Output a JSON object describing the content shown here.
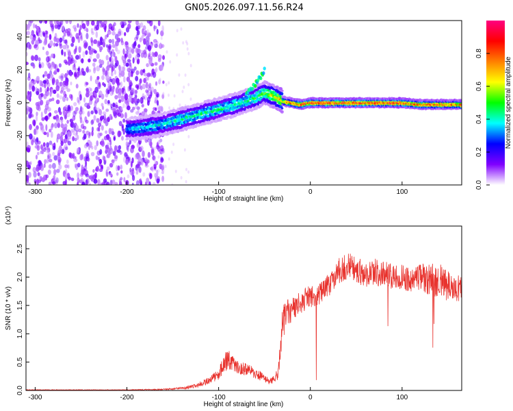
{
  "title": "GN05.2026.097.11.56.R24",
  "chart_data": [
    {
      "type": "heatmap",
      "xlabel": "Height of straight line (km)",
      "ylabel": "Frequency (Hz)",
      "xlim": [
        -310,
        165
      ],
      "ylim": [
        -50,
        50
      ],
      "xticks": [
        -300,
        -200,
        -100,
        0,
        100
      ],
      "yticks": [
        -40,
        -20,
        0,
        20,
        40
      ],
      "colorbar": {
        "label": "Normalized spectral amplitude",
        "range": [
          0,
          1
        ],
        "ticks": [
          "0.0",
          "0.2",
          "0.4",
          "0.6",
          "0.8"
        ],
        "colors": [
          "#ffffff",
          "#8000ff",
          "#0000ff",
          "#00ffff",
          "#00ff00",
          "#ffff00",
          "#ff8000",
          "#ff0000",
          "#ff0080"
        ]
      },
      "ridge": {
        "x": [
          -200,
          -180,
          -160,
          -140,
          -120,
          -100,
          -80,
          -70,
          -60,
          -50,
          -40,
          -30,
          -20,
          -10,
          0,
          20,
          40,
          60,
          80,
          100,
          120,
          140,
          160
        ],
        "y": [
          -16,
          -15,
          -13,
          -10,
          -7,
          -4,
          -1,
          1,
          3,
          6,
          4,
          1,
          0,
          -1,
          0,
          0,
          0,
          0,
          0,
          0,
          -1,
          -1,
          -1
        ],
        "amplitude": [
          0.35,
          0.4,
          0.4,
          0.45,
          0.45,
          0.45,
          0.45,
          0.45,
          0.5,
          0.55,
          0.65,
          0.75,
          0.8,
          0.85,
          0.9,
          0.9,
          0.9,
          0.9,
          0.9,
          0.9,
          0.85,
          0.85,
          0.8
        ]
      },
      "spur": {
        "x": [
          -70,
          -62,
          -55,
          -50
        ],
        "y": [
          6,
          10,
          15,
          20
        ]
      },
      "noise_region_xlim": [
        -310,
        -170
      ]
    },
    {
      "type": "line",
      "xlabel": "Height of straight line (km)",
      "ylabel": "SNR (10 * v/v)",
      "multiplier": "(x10⁴)",
      "xlim": [
        -310,
        165
      ],
      "ylim": [
        0,
        2.9
      ],
      "xticks": [
        -300,
        -200,
        -100,
        0,
        100
      ],
      "yticks": [
        "0.0",
        "0.5",
        "1.0",
        "1.5",
        "2.0",
        "2.5"
      ],
      "color": "#e8332e",
      "x": [
        -310,
        -250,
        -200,
        -160,
        -140,
        -125,
        -110,
        -100,
        -95,
        -90,
        -80,
        -70,
        -60,
        -50,
        -45,
        -40,
        -35,
        -32,
        -30,
        -25,
        -20,
        -15,
        -10,
        -5,
        0,
        5,
        10,
        15,
        20,
        25,
        30,
        40,
        50,
        60,
        70,
        80,
        90,
        100,
        110,
        120,
        130,
        140,
        150,
        160,
        165
      ],
      "y": [
        0.01,
        0.01,
        0.01,
        0.02,
        0.04,
        0.08,
        0.18,
        0.28,
        0.45,
        0.55,
        0.4,
        0.38,
        0.3,
        0.22,
        0.15,
        0.18,
        0.3,
        0.9,
        1.2,
        1.35,
        1.4,
        1.5,
        1.55,
        1.62,
        1.65,
        1.65,
        1.7,
        1.8,
        1.85,
        1.95,
        2.1,
        2.2,
        2.15,
        2.05,
        2.1,
        2.05,
        2.0,
        2.0,
        1.95,
        2.0,
        1.95,
        1.95,
        1.85,
        1.8,
        1.8
      ],
      "noise_amplitude": [
        0.005,
        0.005,
        0.005,
        0.01,
        0.02,
        0.04,
        0.06,
        0.1,
        0.15,
        0.18,
        0.12,
        0.12,
        0.1,
        0.08,
        0.06,
        0.08,
        0.1,
        0.3,
        0.3,
        0.25,
        0.22,
        0.2,
        0.2,
        0.2,
        0.2,
        0.18,
        0.18,
        0.2,
        0.2,
        0.2,
        0.22,
        0.25,
        0.28,
        0.25,
        0.25,
        0.25,
        0.22,
        0.22,
        0.22,
        0.25,
        0.28,
        0.3,
        0.28,
        0.25,
        0.25
      ]
    }
  ]
}
